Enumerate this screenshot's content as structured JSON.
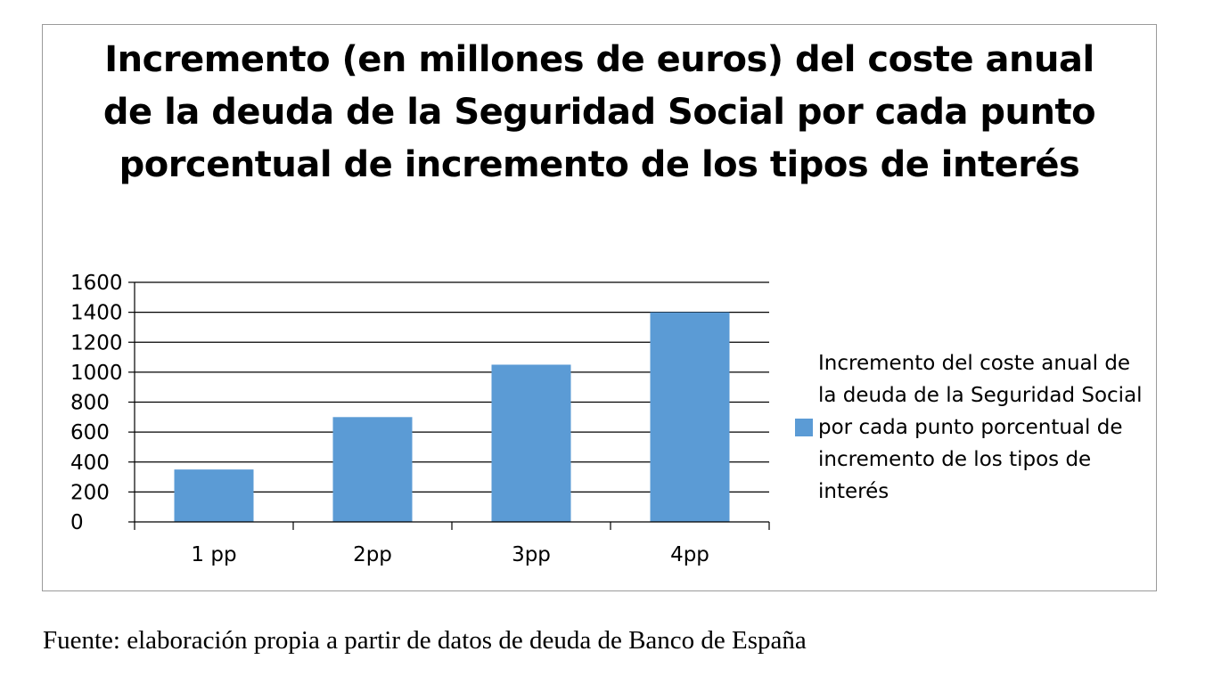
{
  "chart_data": {
    "type": "bar",
    "title": "Incremento (en millones de euros) del coste anual de la deuda de la Seguridad Social por cada punto porcentual de incremento de los tipos de interés",
    "categories": [
      "1 pp",
      "2pp",
      "3pp",
      "4pp"
    ],
    "series": [
      {
        "name": "Incremento del coste anual de la deuda de la Seguridad Social por cada punto porcentual de incremento de los tipos de interés",
        "values": [
          350,
          700,
          1050,
          1400
        ],
        "color": "#5b9bd5"
      }
    ],
    "ylim": [
      0,
      1600
    ],
    "yticks": [
      "0",
      "200",
      "400",
      "600",
      "800",
      "1000",
      "1200",
      "1400",
      "1600"
    ],
    "xlabel": "",
    "ylabel": "",
    "grid": true,
    "legend_position": "right"
  },
  "source_note": "Fuente: elaboración propia a partir de datos de deuda de Banco de España"
}
